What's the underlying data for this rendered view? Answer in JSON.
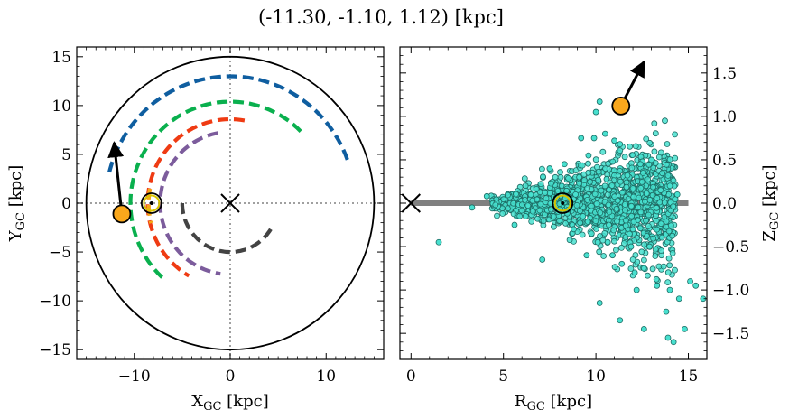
{
  "chart_data": [
    {
      "type": "line",
      "title": "(-11.30, -1.10, 1.12) [kpc]",
      "xlabel": "X_GC [kpc]",
      "ylabel": "Y_GC [kpc]",
      "xlim": [
        -16,
        16
      ],
      "ylim": [
        -16,
        16
      ],
      "x_ticks": [
        -10,
        0,
        10
      ],
      "y_ticks": [
        -15,
        -10,
        -5,
        0,
        5,
        10,
        15
      ],
      "x_tick_labels": [
        "−10",
        "0",
        "10"
      ],
      "y_tick_labels": [
        "−15",
        "−10",
        "−5",
        "0",
        "5",
        "10",
        "15"
      ],
      "boundary_circle_radius": 15,
      "galactic_center": [
        0,
        0
      ],
      "sun": [
        -8.2,
        0
      ],
      "object": {
        "x": -11.3,
        "y": -1.1
      },
      "velocity_arrow": {
        "from": [
          -11.3,
          -1.1
        ],
        "to": [
          -12.1,
          6.2
        ]
      },
      "series": [
        {
          "color": "#0f5ea0",
          "radius": 13,
          "start_deg": 20,
          "end_deg": 167
        },
        {
          "color": "#0ab04e",
          "radius": 10.4,
          "start_deg": 45,
          "end_deg": 230
        },
        {
          "color": "#ef3b13",
          "radius": 8.6,
          "start_deg": 80,
          "end_deg": 240
        },
        {
          "color": "#7c5c9c",
          "radius": 7.3,
          "start_deg": 100,
          "end_deg": 262
        },
        {
          "color": "#434343",
          "radius": 5.0,
          "start_deg": 180,
          "end_deg": 330
        },
        {
          "color": "#f5a716",
          "radius": 8.5,
          "start_deg": 170,
          "end_deg": 194
        }
      ]
    },
    {
      "type": "scatter",
      "xlabel": "R_GC [kpc]",
      "ylabel": "Z_GC [kpc]",
      "xlim": [
        -0.6,
        16
      ],
      "ylim": [
        -1.8,
        1.8
      ],
      "x_ticks": [
        0,
        5,
        10,
        15
      ],
      "y_ticks": [
        -1.5,
        -1.0,
        -0.5,
        0.0,
        0.5,
        1.0,
        1.5
      ],
      "x_tick_labels": [
        "0",
        "5",
        "10",
        "15"
      ],
      "y_tick_labels": [
        "−1.5",
        "−1.0",
        "−0.5",
        "0.0",
        "0.5",
        "1.0",
        "1.5"
      ],
      "disk_line": {
        "from": [
          0,
          0
        ],
        "to": [
          15,
          0
        ],
        "color": "#808080"
      },
      "galactic_center": [
        0,
        0
      ],
      "sun": [
        8.2,
        0
      ],
      "object": {
        "x": 11.35,
        "y": 1.12
      },
      "velocity_arrow": {
        "from": [
          11.35,
          1.12
        ],
        "to": [
          12.6,
          1.63
        ]
      },
      "point_color": "#48e0cf",
      "points": [
        [
          1.5,
          -0.45
        ],
        [
          3.3,
          -0.05
        ],
        [
          4.1,
          0.08
        ],
        [
          5.6,
          -0.25
        ],
        [
          6.2,
          -0.15
        ],
        [
          7.1,
          -0.65
        ],
        [
          7.5,
          0.4
        ],
        [
          8.3,
          0.45
        ],
        [
          8.8,
          -0.3
        ],
        [
          9.1,
          0.3
        ],
        [
          9.6,
          0.55
        ],
        [
          9.9,
          0.75
        ],
        [
          10.2,
          1.17
        ],
        [
          10.0,
          1.05
        ],
        [
          9.2,
          0.75
        ],
        [
          9.5,
          -0.6
        ],
        [
          10.1,
          -0.45
        ],
        [
          10.5,
          0.8
        ],
        [
          11.0,
          0.72
        ],
        [
          11.3,
          0.68
        ],
        [
          11.7,
          0.32
        ],
        [
          12.0,
          -0.3
        ],
        [
          12.4,
          0.45
        ],
        [
          13.0,
          0.5
        ],
        [
          13.5,
          0.15
        ],
        [
          14.0,
          0.2
        ],
        [
          14.4,
          0.1
        ],
        [
          10.9,
          -0.6
        ],
        [
          11.4,
          -0.7
        ],
        [
          12.1,
          -0.8
        ],
        [
          12.6,
          -0.75
        ],
        [
          12.9,
          -0.5
        ],
        [
          13.3,
          -0.95
        ],
        [
          14.0,
          -1.0
        ],
        [
          14.5,
          -1.1
        ],
        [
          15.1,
          -0.9
        ],
        [
          15.4,
          -0.95
        ],
        [
          15.8,
          -1.1
        ],
        [
          10.2,
          -1.15
        ],
        [
          11.3,
          -1.35
        ],
        [
          12.6,
          -1.45
        ],
        [
          13.9,
          -1.55
        ],
        [
          14.2,
          -1.6
        ],
        [
          14.8,
          -1.45
        ],
        [
          13.8,
          -1.25
        ],
        [
          12.2,
          -1.0
        ],
        [
          11.9,
          -0.5
        ],
        [
          10.7,
          -0.25
        ],
        [
          9.3,
          -0.15
        ],
        [
          8.9,
          0.1
        ]
      ]
    }
  ]
}
